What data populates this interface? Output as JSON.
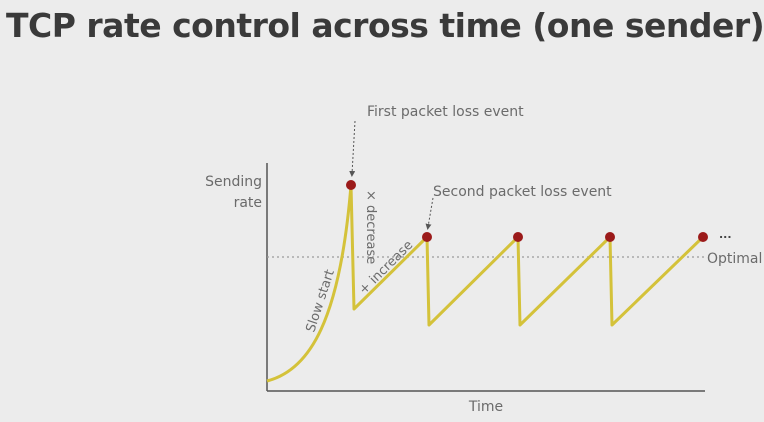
{
  "title": "TCP rate control across time (one sender)",
  "labels": {
    "y_axis_line1": "Sending",
    "y_axis_line2": "rate",
    "x_axis": "Time",
    "first_loss": "First packet loss event",
    "second_loss": "Second packet loss event",
    "slow_start": "Slow start",
    "decrease": "× decrease",
    "increase": "+ increase",
    "optimal": "Optimal",
    "ellipsis": "..."
  },
  "colors": {
    "curve": "#d4c23a",
    "loss_marker": "#9b1a1a",
    "axis": "#555555",
    "optimal_line": "#9a9a9a",
    "text": "#6b6b6b",
    "title": "#3a3a3a"
  }
}
